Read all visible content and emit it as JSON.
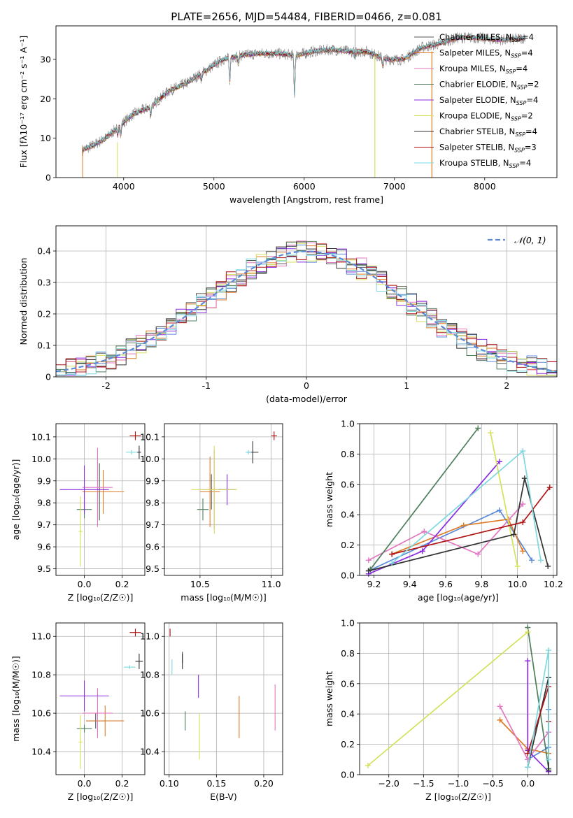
{
  "figure_title": "PLATE=2656, MJD=54484, FIBERID=0466, z=0.081",
  "series_colors": [
    "#555555",
    "#dd7b27",
    "#e377c2",
    "#4f7f5c",
    "#8a2be2",
    "#d4e15a",
    "#333333",
    "#b01414",
    "#7dd8e0"
  ],
  "extra_colors": {
    "blue": "#5b8ad8",
    "gray": "#888888"
  },
  "chart_data": [
    {
      "type": "line",
      "title": "",
      "xlabel": "wavelength [Angstrom, rest frame]",
      "ylabel": "Flux [fλ10⁻¹⁷ erg cm⁻² s⁻¹ A⁻¹]",
      "xlim": [
        3250,
        8800
      ],
      "ylim": [
        0,
        38.5
      ],
      "xticks": [
        4000,
        5000,
        6000,
        7000,
        8000
      ],
      "yticks": [
        0,
        10,
        20,
        30
      ],
      "legend_position": "upper right",
      "legend": [
        {
          "label": "Chabrier MILES, N",
          "sub": "SSP",
          "suffix": "=4"
        },
        {
          "label": "Salpeter MILES, N",
          "sub": "SSP",
          "suffix": "=4"
        },
        {
          "label": "Kroupa MILES, N",
          "sub": "SSP",
          "suffix": "=4"
        },
        {
          "label": "Chabrier ELODIE, N",
          "sub": "SSP",
          "suffix": "=2"
        },
        {
          "label": "Salpeter ELODIE, N",
          "sub": "SSP",
          "suffix": "=4"
        },
        {
          "label": "Kroupa ELODIE, N",
          "sub": "SSP",
          "suffix": "=2"
        },
        {
          "label": "Chabrier STELIB, N",
          "sub": "SSP",
          "suffix": "=4"
        },
        {
          "label": "Salpeter STELIB, N",
          "sub": "SSP",
          "suffix": "=3"
        },
        {
          "label": "Kroupa STELIB, N",
          "sub": "SSP",
          "suffix": "=4"
        }
      ],
      "continuum": [
        [
          3540,
          7
        ],
        [
          3650,
          8
        ],
        [
          3800,
          10
        ],
        [
          3950,
          13
        ],
        [
          4100,
          16
        ],
        [
          4300,
          18
        ],
        [
          4500,
          22
        ],
        [
          4700,
          24
        ],
        [
          4900,
          27
        ],
        [
          5100,
          30
        ],
        [
          5300,
          31
        ],
        [
          5500,
          31.5
        ],
        [
          5700,
          31.5
        ],
        [
          5900,
          31
        ],
        [
          6100,
          32
        ],
        [
          6300,
          32.5
        ],
        [
          6500,
          32
        ],
        [
          6700,
          32
        ],
        [
          6900,
          30
        ],
        [
          7100,
          30
        ],
        [
          7300,
          33
        ],
        [
          7500,
          34
        ],
        [
          7700,
          35.5
        ],
        [
          7900,
          35.5
        ],
        [
          8100,
          35
        ],
        [
          8300,
          35
        ],
        [
          8450,
          35.5
        ]
      ],
      "absorption_lines": [
        [
          3934,
          2
        ],
        [
          3968,
          2.5
        ],
        [
          4300,
          2
        ],
        [
          4861,
          1.5
        ],
        [
          5175,
          6
        ],
        [
          5270,
          2
        ],
        [
          5893,
          10
        ],
        [
          6563,
          1.5
        ],
        [
          6870,
          2
        ]
      ]
    },
    {
      "type": "histogram",
      "title": "",
      "xlabel": "(data-model)/error",
      "ylabel": "Normed distribution",
      "xlim": [
        -2.5,
        2.5
      ],
      "ylim": [
        0,
        0.48
      ],
      "xticks": [
        -2,
        -1,
        0,
        1,
        2
      ],
      "yticks": [
        0.0,
        0.1,
        0.2,
        0.3,
        0.4
      ],
      "grid": true,
      "legend_position": "upper right",
      "legend": [
        "𝒩(0, 1)"
      ],
      "bin_width": 0.1,
      "reference_curve": "standard normal pdf"
    },
    {
      "type": "errorbar",
      "title": "",
      "xlabel": "Z [log₁₀(Z/Z☉)]",
      "ylabel": "age  [log₁₀(age/yr)]",
      "xlim": [
        -0.15,
        0.32
      ],
      "ylim": [
        9.47,
        10.16
      ],
      "xticks": [
        "0.0",
        "0.2"
      ],
      "yticks": [
        "9.5",
        "9.6",
        "9.7",
        "9.8",
        "9.9",
        "10.0",
        "10.1"
      ],
      "grid": true,
      "points": [
        {
          "x": 0.08,
          "y": 9.85,
          "xerr": 0.07,
          "yerr": 0.13,
          "color": 0
        },
        {
          "x": 0.1,
          "y": 9.85,
          "xerr": 0.11,
          "yerr": 0.1,
          "color": 1
        },
        {
          "x": 0.07,
          "y": 9.87,
          "xerr": 0.08,
          "yerr": 0.18,
          "color": 2
        },
        {
          "x": 0.0,
          "y": 9.77,
          "xerr": 0.04,
          "yerr": 0.04,
          "color": 3
        },
        {
          "x": 0.0,
          "y": 9.86,
          "xerr": 0.13,
          "yerr": 0.11,
          "color": 4
        },
        {
          "x": -0.02,
          "y": 9.67,
          "xerr": 0.01,
          "yerr": 0.16,
          "color": 5
        },
        {
          "x": 0.29,
          "y": 10.03,
          "xerr": 0.01,
          "yerr": 0.03,
          "color": 6
        },
        {
          "x": 0.27,
          "y": 10.105,
          "xerr": 0.03,
          "yerr": 0.02,
          "color": 7
        },
        {
          "x": 0.25,
          "y": 10.03,
          "xerr": 0.03,
          "yerr": 0.01,
          "color": 8
        }
      ]
    },
    {
      "type": "errorbar",
      "title": "",
      "xlabel": "mass [log₁₀(M/M☉)]",
      "ylabel": "",
      "xlim": [
        10.25,
        11.08
      ],
      "ylim": [
        9.47,
        10.16
      ],
      "xticks": [
        "10.5",
        "11.0"
      ],
      "yticks": [
        "9.5",
        "9.6",
        "9.7",
        "9.8",
        "9.9",
        "10.0",
        "10.1"
      ],
      "grid": true,
      "points": [
        {
          "x": 10.58,
          "y": 9.85,
          "xerr": 0.04,
          "yerr": 0.08,
          "color": 0
        },
        {
          "x": 10.57,
          "y": 9.85,
          "xerr": 0.07,
          "yerr": 0.16,
          "color": 1
        },
        {
          "x": 10.6,
          "y": 9.86,
          "xerr": 0.09,
          "yerr": 0.18,
          "color": 2
        },
        {
          "x": 10.52,
          "y": 9.77,
          "xerr": 0.04,
          "yerr": 0.05,
          "color": 3
        },
        {
          "x": 10.69,
          "y": 9.86,
          "xerr": 0.06,
          "yerr": 0.07,
          "color": 4
        },
        {
          "x": 10.6,
          "y": 9.86,
          "xerr": 0.16,
          "yerr": 0.2,
          "color": 5
        },
        {
          "x": 10.87,
          "y": 10.03,
          "xerr": 0.04,
          "yerr": 0.05,
          "color": 6
        },
        {
          "x": 11.02,
          "y": 10.105,
          "xerr": 0.02,
          "yerr": 0.02,
          "color": 7
        },
        {
          "x": 10.84,
          "y": 10.03,
          "xerr": 0.02,
          "yerr": 0.01,
          "color": 8
        }
      ]
    },
    {
      "type": "line",
      "title": "",
      "xlabel": "age  [log₁₀(age/yr)]",
      "ylabel": "mass weight",
      "xlim": [
        9.12,
        10.22
      ],
      "ylim": [
        0,
        1.0
      ],
      "xticks": [
        "9.2",
        "9.4",
        "9.6",
        "9.8",
        "10.0",
        "10.2"
      ],
      "yticks": [
        "0.0",
        "0.2",
        "0.4",
        "0.6",
        "0.8",
        "1.0"
      ],
      "grid": true,
      "series": [
        {
          "color": "blue",
          "points": [
            [
              9.17,
              0.03
            ],
            [
              9.9,
              0.43
            ],
            [
              10.08,
              0.1
            ]
          ]
        },
        {
          "color": 1,
          "points": [
            [
              9.3,
              0.14
            ],
            [
              9.7,
              0.33
            ],
            [
              9.95,
              0.37
            ],
            [
              10.03,
              0.16
            ]
          ]
        },
        {
          "color": 2,
          "points": [
            [
              9.17,
              0.1
            ],
            [
              9.48,
              0.29
            ],
            [
              9.78,
              0.14
            ],
            [
              10.03,
              0.47
            ]
          ]
        },
        {
          "color": 3,
          "points": [
            [
              9.18,
              0.04
            ],
            [
              9.78,
              0.97
            ]
          ]
        },
        {
          "color": 4,
          "points": [
            [
              9.17,
              0.01
            ],
            [
              9.47,
              0.16
            ],
            [
              9.9,
              0.75
            ]
          ]
        },
        {
          "color": 5,
          "points": [
            [
              9.85,
              0.94
            ],
            [
              10.0,
              0.06
            ]
          ]
        },
        {
          "color": 6,
          "points": [
            [
              9.17,
              0.03
            ],
            [
              9.98,
              0.27
            ],
            [
              10.04,
              0.64
            ],
            [
              10.17,
              0.06
            ]
          ]
        },
        {
          "color": 7,
          "points": [
            [
              9.3,
              0.14
            ],
            [
              10.03,
              0.35
            ],
            [
              10.18,
              0.58
            ]
          ]
        },
        {
          "color": 8,
          "points": [
            [
              9.3,
              0.08
            ],
            [
              10.03,
              0.82
            ],
            [
              10.13,
              0.1
            ]
          ]
        }
      ]
    },
    {
      "type": "errorbar",
      "title": "",
      "xlabel": "Z [log₁₀(Z/Z☉)]",
      "ylabel": "mass [log₁₀(M/M☉)]",
      "xlim": [
        -0.15,
        0.32
      ],
      "ylim": [
        10.28,
        11.07
      ],
      "xticks": [
        "0.0",
        "0.2"
      ],
      "yticks": [
        "10.4",
        "10.6",
        "10.8",
        "11.0"
      ],
      "grid": true,
      "points": [
        {
          "x": 0.06,
          "y": 10.56,
          "xerr": 0.05,
          "yerr": 0.04,
          "color": 0
        },
        {
          "x": 0.11,
          "y": 10.56,
          "xerr": 0.1,
          "yerr": 0.08,
          "color": 1
        },
        {
          "x": 0.07,
          "y": 10.6,
          "xerr": 0.08,
          "yerr": 0.13,
          "color": 2
        },
        {
          "x": 0.0,
          "y": 10.52,
          "xerr": 0.04,
          "yerr": 0.02,
          "color": 3
        },
        {
          "x": 0.0,
          "y": 10.69,
          "xerr": 0.13,
          "yerr": 0.08,
          "color": 4
        },
        {
          "x": -0.02,
          "y": 10.45,
          "xerr": 0.01,
          "yerr": 0.14,
          "color": 5
        },
        {
          "x": 0.29,
          "y": 10.87,
          "xerr": 0.02,
          "yerr": 0.04,
          "color": 6
        },
        {
          "x": 0.27,
          "y": 11.02,
          "xerr": 0.03,
          "yerr": 0.02,
          "color": 7
        },
        {
          "x": 0.24,
          "y": 10.84,
          "xerr": 0.03,
          "yerr": 0.01,
          "color": 8
        }
      ]
    },
    {
      "type": "errorbar",
      "title": "",
      "xlabel": "E(B-V)",
      "ylabel": "",
      "xlim": [
        0.095,
        0.22
      ],
      "ylim": [
        10.28,
        11.07
      ],
      "xticks": [
        "0.10",
        "0.15",
        "0.20"
      ],
      "yticks": [
        "10.4",
        "10.6",
        "10.8",
        "11.0"
      ],
      "grid": true,
      "points": [
        {
          "x": 0.114,
          "y": 10.89,
          "yerr": 0.03,
          "color": 0
        },
        {
          "x": 0.174,
          "y": 10.58,
          "yerr": 0.11,
          "color": 1
        },
        {
          "x": 0.212,
          "y": 10.63,
          "yerr": 0.12,
          "color": 2
        },
        {
          "x": 0.117,
          "y": 10.56,
          "yerr": 0.05,
          "color": 3
        },
        {
          "x": 0.131,
          "y": 10.74,
          "yerr": 0.06,
          "color": 4
        },
        {
          "x": 0.132,
          "y": 10.48,
          "yerr": 0.12,
          "color": 5
        },
        {
          "x": 0.114,
          "y": 10.87,
          "yerr": 0.04,
          "color": 6
        },
        {
          "x": 0.101,
          "y": 11.02,
          "yerr": 0.02,
          "color": 7
        },
        {
          "x": 0.103,
          "y": 10.84,
          "yerr": 0.04,
          "color": 8
        }
      ]
    },
    {
      "type": "line",
      "title": "",
      "xlabel": "Z [log₁₀(Z/Z☉)]",
      "ylabel": "mass weight",
      "xlim": [
        -2.42,
        0.42
      ],
      "ylim": [
        0,
        1.0
      ],
      "xticks": [
        "−2.0",
        "−1.5",
        "−1.0",
        "−0.5",
        "0.0"
      ],
      "yticks": [
        "0.0",
        "0.2",
        "0.4",
        "0.6",
        "0.8",
        "1.0"
      ],
      "grid": true,
      "series": [
        {
          "color": "blue",
          "points": [
            [
              0.0,
              0.1
            ],
            [
              0.3,
              0.18
            ],
            [
              0.3,
              0.43
            ]
          ]
        },
        {
          "color": 1,
          "points": [
            [
              -0.4,
              0.36
            ],
            [
              0.0,
              0.17
            ],
            [
              0.3,
              0.14
            ]
          ]
        },
        {
          "color": 2,
          "points": [
            [
              -0.4,
              0.45
            ],
            [
              0.0,
              0.1
            ],
            [
              0.3,
              0.28
            ]
          ]
        },
        {
          "color": 3,
          "points": [
            [
              0.0,
              0.97
            ],
            [
              0.3,
              0.04
            ]
          ]
        },
        {
          "color": 4,
          "points": [
            [
              0.0,
              0.75
            ],
            [
              0.0,
              0.16
            ],
            [
              0.3,
              0.02
            ]
          ]
        },
        {
          "color": 5,
          "points": [
            [
              -2.3,
              0.06
            ],
            [
              0.0,
              0.94
            ]
          ]
        },
        {
          "color": 6,
          "points": [
            [
              0.0,
              0.05
            ],
            [
              0.3,
              0.64
            ],
            [
              0.3,
              0.03
            ]
          ]
        },
        {
          "color": 7,
          "points": [
            [
              0.0,
              0.14
            ],
            [
              0.3,
              0.58
            ],
            [
              0.3,
              0.35
            ]
          ]
        },
        {
          "color": 8,
          "points": [
            [
              0.0,
              0.05
            ],
            [
              0.3,
              0.82
            ],
            [
              0.3,
              0.1
            ]
          ]
        }
      ]
    }
  ]
}
